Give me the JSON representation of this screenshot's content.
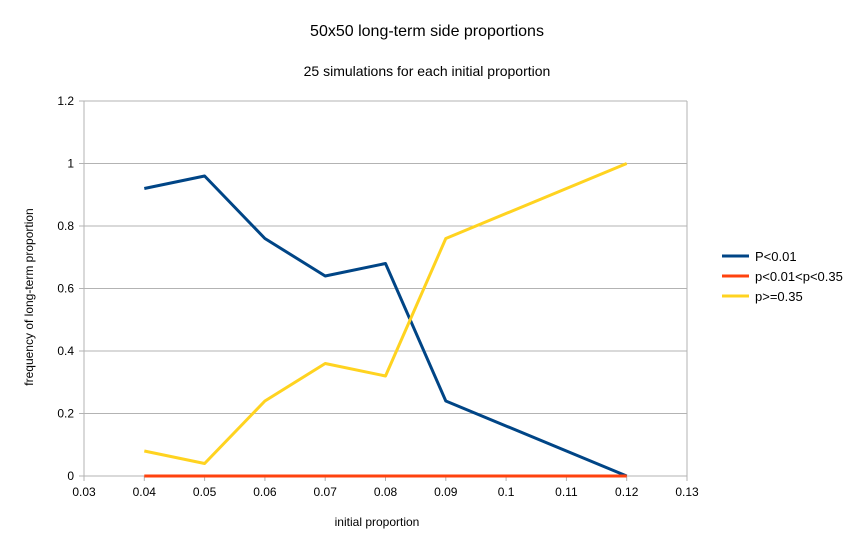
{
  "chart_data": {
    "type": "line",
    "title": "50x50 long-term side proportions",
    "subtitle": "25 simulations for each initial proportion",
    "xlabel": "initial proportion",
    "ylabel": "frequency of long-term proportion",
    "xlim": [
      0.03,
      0.13
    ],
    "ylim": [
      0,
      1.2
    ],
    "xticks": [
      "0.03",
      "0.04",
      "0.05",
      "0.06",
      "0.07",
      "0.08",
      "0.09",
      "0.1",
      "0.11",
      "0.12",
      "0.13"
    ],
    "yticks": [
      "0",
      "0.2",
      "0.4",
      "0.6",
      "0.8",
      "1",
      "1.2"
    ],
    "grid": "horizontal",
    "legend_position": "right",
    "x": [
      0.04,
      0.05,
      0.06,
      0.07,
      0.08,
      0.09,
      0.12
    ],
    "series": [
      {
        "name": "P<0.01",
        "color": "#004586",
        "values": [
          0.92,
          0.96,
          0.76,
          0.64,
          0.68,
          0.24,
          0
        ]
      },
      {
        "name": "p<0.01<p<0.35",
        "color": "#ff420e",
        "values": [
          0,
          0,
          0,
          0,
          0,
          0,
          0
        ]
      },
      {
        "name": "p>=0.35",
        "color": "#ffd320",
        "values": [
          0.08,
          0.04,
          0.24,
          0.36,
          0.32,
          0.76,
          1
        ]
      }
    ]
  }
}
